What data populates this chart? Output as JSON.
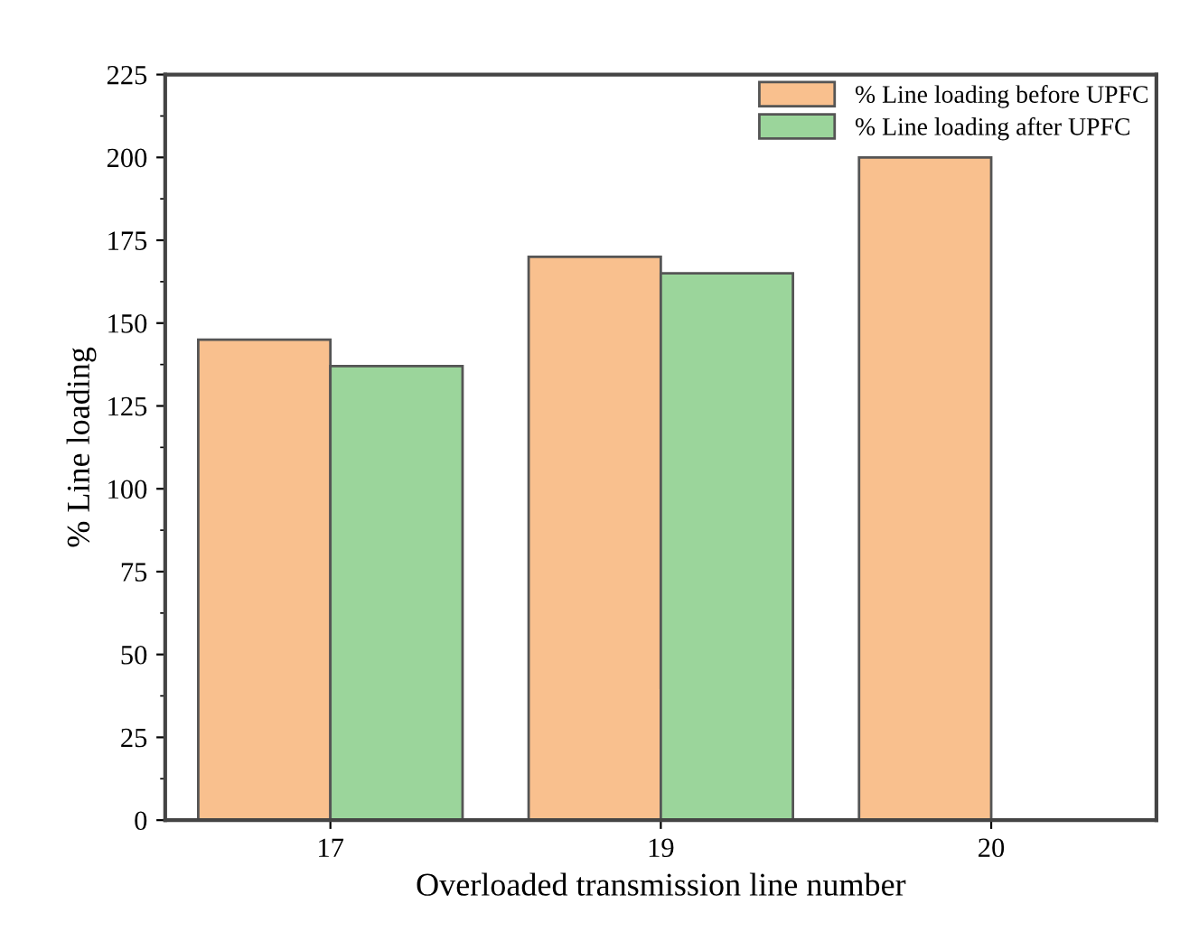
{
  "chart_data": {
    "type": "bar",
    "xlabel": "Overloaded transmission line number",
    "ylabel": "% Line loading",
    "categories": [
      "17",
      "19",
      "20"
    ],
    "series": [
      {
        "name": "% Line loading before UPFC",
        "color": "#f9c08e",
        "values": [
          145,
          170,
          200
        ]
      },
      {
        "name": "% Line loading after UPFC",
        "color": "#9bd59b",
        "values": [
          137,
          165,
          null
        ]
      }
    ],
    "ylim": [
      0,
      225
    ],
    "yticks": [
      0,
      25,
      50,
      75,
      100,
      125,
      150,
      175,
      200,
      225
    ],
    "grid": false,
    "legend": "top right"
  }
}
